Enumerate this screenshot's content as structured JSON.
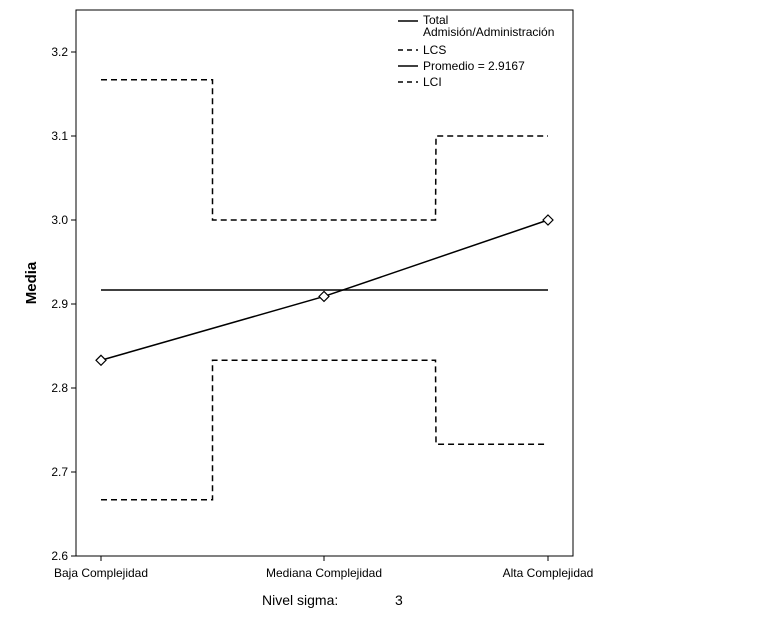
{
  "chart_data": {
    "type": "line",
    "ylabel": "Media",
    "ylim": [
      2.6,
      3.25
    ],
    "yticks": [
      "2.6",
      "2.7",
      "2.8",
      "2.9",
      "3.0",
      "3.1",
      "3.2"
    ],
    "categories": [
      "Baja Complejidad",
      "Mediana Complejidad",
      "Alta Complejidad"
    ],
    "series": [
      {
        "name": "Total Admisión/Administración",
        "values": [
          2.833,
          2.909,
          3.0
        ],
        "style": "solid-markers",
        "marker": "diamond"
      },
      {
        "name": "LCS",
        "values": [
          3.167,
          3.0,
          3.1
        ],
        "style": "dashed-step"
      },
      {
        "name": "Promedio = 2.9167",
        "values": [
          2.9167,
          2.9167,
          2.9167
        ],
        "style": "solid"
      },
      {
        "name": "LCI",
        "values": [
          2.667,
          2.833,
          2.733
        ],
        "style": "dashed-step"
      }
    ],
    "legend": {
      "placement": "top-right",
      "entries": [
        {
          "lines": [
            "Total",
            "Admisión/Administración"
          ],
          "style": "solid"
        },
        {
          "lines": [
            "LCS"
          ],
          "style": "dashed"
        },
        {
          "lines": [
            "Promedio = 2.9167"
          ],
          "style": "solid"
        },
        {
          "lines": [
            "LCI"
          ],
          "style": "dashed"
        }
      ]
    },
    "grid": false
  },
  "footer": {
    "label": "Nivel sigma:",
    "value": "3"
  }
}
